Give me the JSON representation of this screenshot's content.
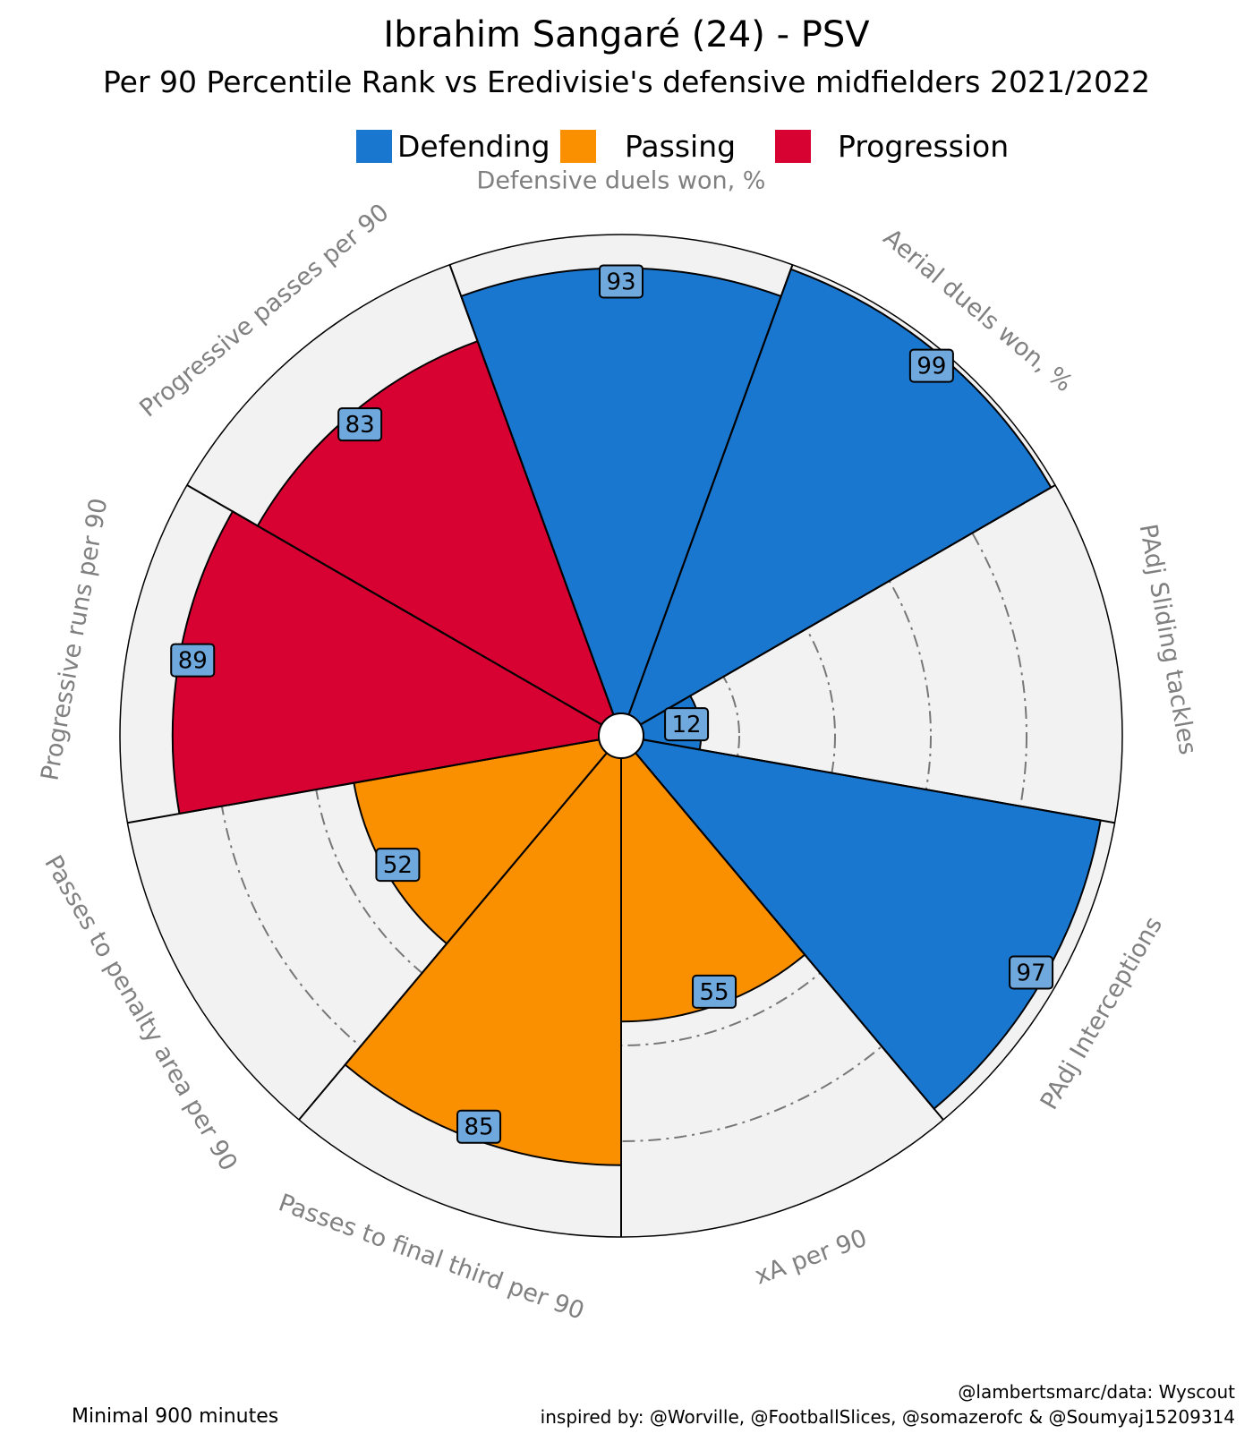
{
  "header": {
    "title": "Ibrahim Sangaré (24) -  PSV",
    "subtitle": "Per 90 Percentile Rank vs Eredivisie's defensive midfielders 2021/2022"
  },
  "legend": [
    {
      "label": "Defending",
      "color": "#1a77cf"
    },
    {
      "label": "Passing",
      "color": "#fa8f00"
    },
    {
      "label": "Progression",
      "color": "#d70232"
    }
  ],
  "chart_data": {
    "type": "radar-bar",
    "rlim": [
      0,
      100
    ],
    "grid": "dash-dot rings at 20, 40, 60, 80",
    "categories": [
      {
        "label": "Defensive duels won, %",
        "value": 93,
        "group": "Defending"
      },
      {
        "label": "Aerial duels won, %",
        "value": 99,
        "group": "Defending"
      },
      {
        "label": "PAdj Sliding tackles",
        "value": 12,
        "group": "Defending"
      },
      {
        "label": "PAdj Interceptions",
        "value": 97,
        "group": "Defending"
      },
      {
        "label": "xA per 90",
        "value": 55,
        "group": "Passing"
      },
      {
        "label": "Passes to final third per 90",
        "value": 85,
        "group": "Passing"
      },
      {
        "label": "Passes to penalty area per 90",
        "value": 52,
        "group": "Passing"
      },
      {
        "label": "Progressive runs per 90",
        "value": 89,
        "group": "Progression"
      },
      {
        "label": "Progressive passes per 90",
        "value": 83,
        "group": "Progression"
      }
    ],
    "colors": {
      "Defending": "#1a77cf",
      "Passing": "#fa8f00",
      "Progression": "#d70232",
      "background": "#f2f2f2",
      "value_box": "#6fa8dc",
      "label_text": "#808080"
    }
  },
  "footer": {
    "left": "Minimal 900 minutes",
    "right_line1": "@lambertsmarc/data: Wyscout",
    "right_line2": "inspired by: @Worville, @FootballSlices, @somazerofc & @Soumyaj15209314"
  }
}
